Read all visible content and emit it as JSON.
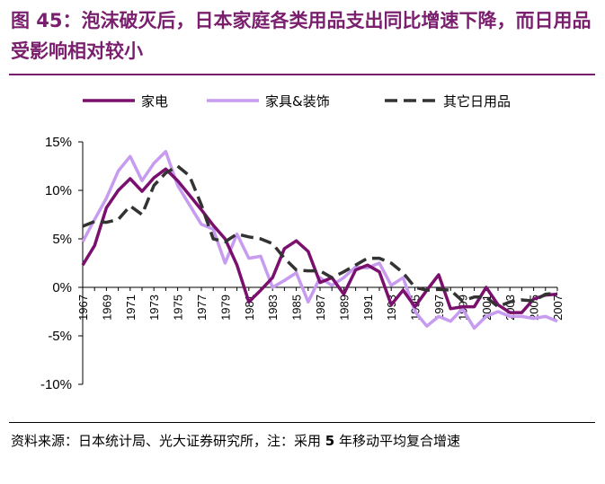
{
  "figure": {
    "title": "图 45：泡沫破灭后，日本家庭各类用品支出同比增速下降，而日用品受影响相对较小",
    "source_prefix": "资料来源：日本统计局、光大证券研究所，注：采用 ",
    "source_number": "5",
    "source_suffix": " 年移动平均复合增速"
  },
  "colors": {
    "appliances": "#7a0f6e",
    "furniture": "#c79cf0",
    "other": "#333333",
    "title": "#7a1f6e"
  },
  "chart_data": {
    "type": "line",
    "title": "",
    "xlabel": "",
    "ylabel": "",
    "ylim": [
      -10,
      15
    ],
    "yticks": [
      15,
      10,
      5,
      0,
      -5,
      -10
    ],
    "ytick_labels": [
      "15%",
      "10%",
      "5%",
      "0%",
      "-5%",
      "-10%"
    ],
    "xrange": [
      1967,
      2007
    ],
    "xticks": [
      1967,
      1969,
      1971,
      1973,
      1975,
      1977,
      1979,
      1981,
      1983,
      1985,
      1987,
      1989,
      1991,
      1993,
      1995,
      1997,
      1999,
      2001,
      2003,
      2005,
      2007
    ],
    "xtick_labels": [
      "1967",
      "1969",
      "1971",
      "1973",
      "1975",
      "1977",
      "1979",
      "1981",
      "1983",
      "1985",
      "1987",
      "1989",
      "1991",
      "1993",
      "1995",
      "1997",
      "1999",
      "2001",
      "2003",
      "2005",
      "2007"
    ],
    "legend_position": "top",
    "series": [
      {
        "name": "家电",
        "key": "appliances",
        "x": [
          1967,
          1968,
          1969,
          1970,
          1971,
          1972,
          1973,
          1974,
          1975,
          1976,
          1977,
          1978,
          1979,
          1980,
          1981,
          1982,
          1983,
          1984,
          1985,
          1986,
          1987,
          1988,
          1989,
          1990,
          1991,
          1992,
          1993,
          1994,
          1995,
          1996,
          1997,
          1998,
          1999,
          2000,
          2001,
          2002,
          2003,
          2004,
          2005,
          2006,
          2007
        ],
        "values": [
          2.3,
          4.3,
          8.2,
          10.0,
          11.2,
          9.9,
          11.3,
          12.2,
          11.0,
          9.5,
          8.0,
          6.4,
          5.0,
          2.3,
          -1.5,
          -0.3,
          1.0,
          4.0,
          4.8,
          3.7,
          0.5,
          1.0,
          -0.7,
          1.8,
          2.3,
          1.6,
          -1.8,
          -0.3,
          -2.0,
          -0.3,
          1.3,
          -2.2,
          -2.0,
          -2.0,
          0.0,
          -1.8,
          -2.6,
          -2.6,
          -1.2,
          -0.8,
          -0.7
        ]
      },
      {
        "name": "家具&装饰",
        "key": "furniture",
        "x": [
          1967,
          1968,
          1969,
          1970,
          1971,
          1972,
          1973,
          1974,
          1975,
          1976,
          1977,
          1978,
          1979,
          1980,
          1981,
          1982,
          1983,
          1984,
          1985,
          1986,
          1987,
          1988,
          1989,
          1990,
          1991,
          1992,
          1993,
          1994,
          1995,
          1996,
          1997,
          1998,
          1999,
          2000,
          2001,
          2002,
          2003,
          2004,
          2005,
          2006,
          2007
        ],
        "values": [
          4.7,
          7.0,
          9.2,
          12.0,
          13.5,
          11.0,
          12.8,
          14.0,
          10.5,
          8.5,
          6.5,
          6.0,
          2.5,
          5.5,
          3.0,
          3.2,
          0.0,
          0.7,
          1.5,
          -1.5,
          1.0,
          0.2,
          1.0,
          2.1,
          2.0,
          2.5,
          0.2,
          1.0,
          -2.5,
          -4.0,
          -3.0,
          -3.5,
          -2.2,
          -4.2,
          -3.0,
          -2.5,
          -3.0,
          -3.0,
          -3.2,
          -3.0,
          -3.5
        ]
      },
      {
        "name": "其它日用品",
        "key": "other",
        "x": [
          1967,
          1968,
          1969,
          1970,
          1971,
          1972,
          1973,
          1974,
          1975,
          1976,
          1977,
          1978,
          1979,
          1980,
          1981,
          1982,
          1983,
          1984,
          1985,
          1986,
          1987,
          1988,
          1989,
          1990,
          1991,
          1992,
          1993,
          1994,
          1995,
          1996,
          1997,
          1998,
          1999,
          2000,
          2001,
          2002,
          2003,
          2004,
          2005,
          2006,
          2007
        ],
        "values": [
          6.3,
          6.8,
          6.7,
          7.0,
          8.4,
          7.5,
          10.5,
          11.8,
          12.5,
          11.5,
          8.5,
          5.0,
          4.7,
          5.5,
          5.2,
          5.0,
          4.5,
          3.0,
          1.8,
          1.7,
          1.7,
          1.0,
          1.6,
          2.3,
          3.0,
          3.0,
          2.5,
          1.5,
          0.0,
          -0.3,
          -0.2,
          -0.3,
          -1.4,
          -1.0,
          -1.0,
          -2.0,
          -1.5,
          -1.3,
          -1.4,
          -0.7,
          -0.6
        ]
      }
    ]
  }
}
